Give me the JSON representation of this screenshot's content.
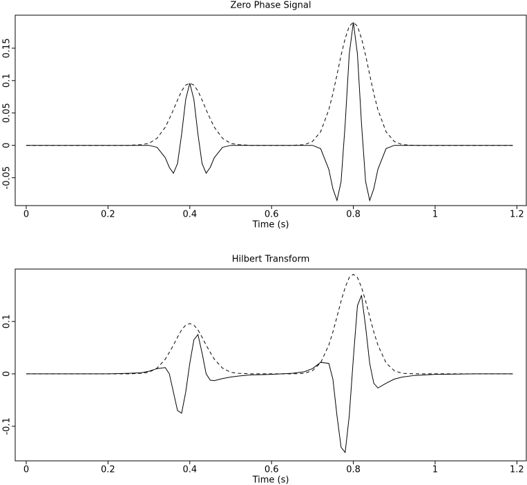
{
  "chart_data": [
    {
      "type": "line",
      "title": "Zero Phase Signal",
      "xlabel": "Time (s)",
      "x": [
        0,
        0.1,
        0.2,
        0.25,
        0.28,
        0.3,
        0.32,
        0.34,
        0.35,
        0.36,
        0.37,
        0.38,
        0.39,
        0.4,
        0.41,
        0.42,
        0.43,
        0.44,
        0.45,
        0.46,
        0.48,
        0.5,
        0.52,
        0.55,
        0.6,
        0.65,
        0.68,
        0.7,
        0.72,
        0.74,
        0.75,
        0.76,
        0.77,
        0.78,
        0.79,
        0.8,
        0.81,
        0.82,
        0.83,
        0.84,
        0.85,
        0.86,
        0.88,
        0.9,
        0.92,
        0.95,
        1.0,
        1.1,
        1.19
      ],
      "series": [
        {
          "color": "#000000",
          "linestyle": "solid",
          "values": [
            0,
            0,
            0,
            0,
            0,
            0,
            -0.003,
            -0.019,
            -0.034,
            -0.043,
            -0.028,
            0.017,
            0.071,
            0.096,
            0.071,
            0.017,
            -0.028,
            -0.043,
            -0.034,
            -0.019,
            -0.003,
            0,
            0,
            0,
            0,
            0,
            0,
            0,
            -0.005,
            -0.037,
            -0.067,
            -0.085,
            -0.056,
            0.033,
            0.141,
            0.19,
            0.141,
            0.033,
            -0.056,
            -0.085,
            -0.067,
            -0.037,
            -0.005,
            0,
            0,
            0,
            0,
            0,
            0
          ]
        },
        {
          "color": "#000000",
          "linestyle": "dashed",
          "values": [
            0,
            0,
            0,
            0,
            0.001,
            0.003,
            0.011,
            0.028,
            0.041,
            0.055,
            0.07,
            0.084,
            0.093,
            0.096,
            0.093,
            0.084,
            0.07,
            0.055,
            0.041,
            0.028,
            0.011,
            0.003,
            0.001,
            0,
            0,
            0,
            0.001,
            0.006,
            0.021,
            0.055,
            0.08,
            0.109,
            0.139,
            0.165,
            0.184,
            0.19,
            0.184,
            0.165,
            0.139,
            0.109,
            0.08,
            0.055,
            0.021,
            0.006,
            0.001,
            0,
            0,
            0,
            0
          ]
        }
      ],
      "xlim": [
        -0.027,
        1.223
      ],
      "xticks": [
        0,
        0.2,
        0.4,
        0.6,
        0.8,
        1,
        1.2
      ],
      "ylim": [
        -0.093,
        0.201
      ],
      "yticks": [
        -0.05,
        0,
        0.05,
        0.1,
        0.15
      ]
    },
    {
      "type": "line",
      "title": "Hilbert Transform",
      "xlabel": "Time (s)",
      "x": [
        0,
        0.1,
        0.2,
        0.25,
        0.28,
        0.3,
        0.32,
        0.34,
        0.35,
        0.36,
        0.37,
        0.38,
        0.39,
        0.4,
        0.41,
        0.42,
        0.43,
        0.44,
        0.45,
        0.46,
        0.48,
        0.5,
        0.52,
        0.55,
        0.6,
        0.65,
        0.68,
        0.7,
        0.72,
        0.74,
        0.75,
        0.76,
        0.77,
        0.78,
        0.79,
        0.8,
        0.81,
        0.82,
        0.83,
        0.84,
        0.85,
        0.86,
        0.88,
        0.9,
        0.92,
        0.95,
        1.0,
        1.1,
        1.19
      ],
      "series": [
        {
          "color": "#000000",
          "linestyle": "solid",
          "values": [
            0,
            0,
            0,
            0.001,
            0.002,
            0.005,
            0.01,
            0.012,
            0,
            -0.035,
            -0.07,
            -0.075,
            -0.035,
            0.02,
            0.065,
            0.075,
            0.04,
            0,
            -0.012,
            -0.013,
            -0.009,
            -0.006,
            -0.004,
            -0.002,
            -0.001,
            0.001,
            0.004,
            0.01,
            0.022,
            0.02,
            -0.01,
            -0.08,
            -0.14,
            -0.15,
            -0.08,
            0.03,
            0.13,
            0.15,
            0.09,
            0.02,
            -0.018,
            -0.027,
            -0.018,
            -0.01,
            -0.006,
            -0.003,
            -0.001,
            0,
            0
          ]
        },
        {
          "color": "#000000",
          "linestyle": "dashed",
          "values": [
            0,
            0,
            0,
            0,
            0.001,
            0.003,
            0.011,
            0.028,
            0.041,
            0.055,
            0.07,
            0.084,
            0.093,
            0.096,
            0.093,
            0.084,
            0.07,
            0.055,
            0.041,
            0.028,
            0.011,
            0.003,
            0.001,
            0,
            0,
            0,
            0.001,
            0.006,
            0.021,
            0.055,
            0.08,
            0.109,
            0.139,
            0.165,
            0.184,
            0.19,
            0.184,
            0.165,
            0.139,
            0.109,
            0.08,
            0.055,
            0.021,
            0.006,
            0.001,
            0,
            0,
            0,
            0
          ]
        }
      ],
      "xlim": [
        -0.027,
        1.223
      ],
      "xticks": [
        0,
        0.2,
        0.4,
        0.6,
        0.8,
        1,
        1.2
      ],
      "ylim": [
        -0.166,
        0.2
      ],
      "yticks": [
        -0.1,
        0,
        0.1
      ]
    }
  ]
}
